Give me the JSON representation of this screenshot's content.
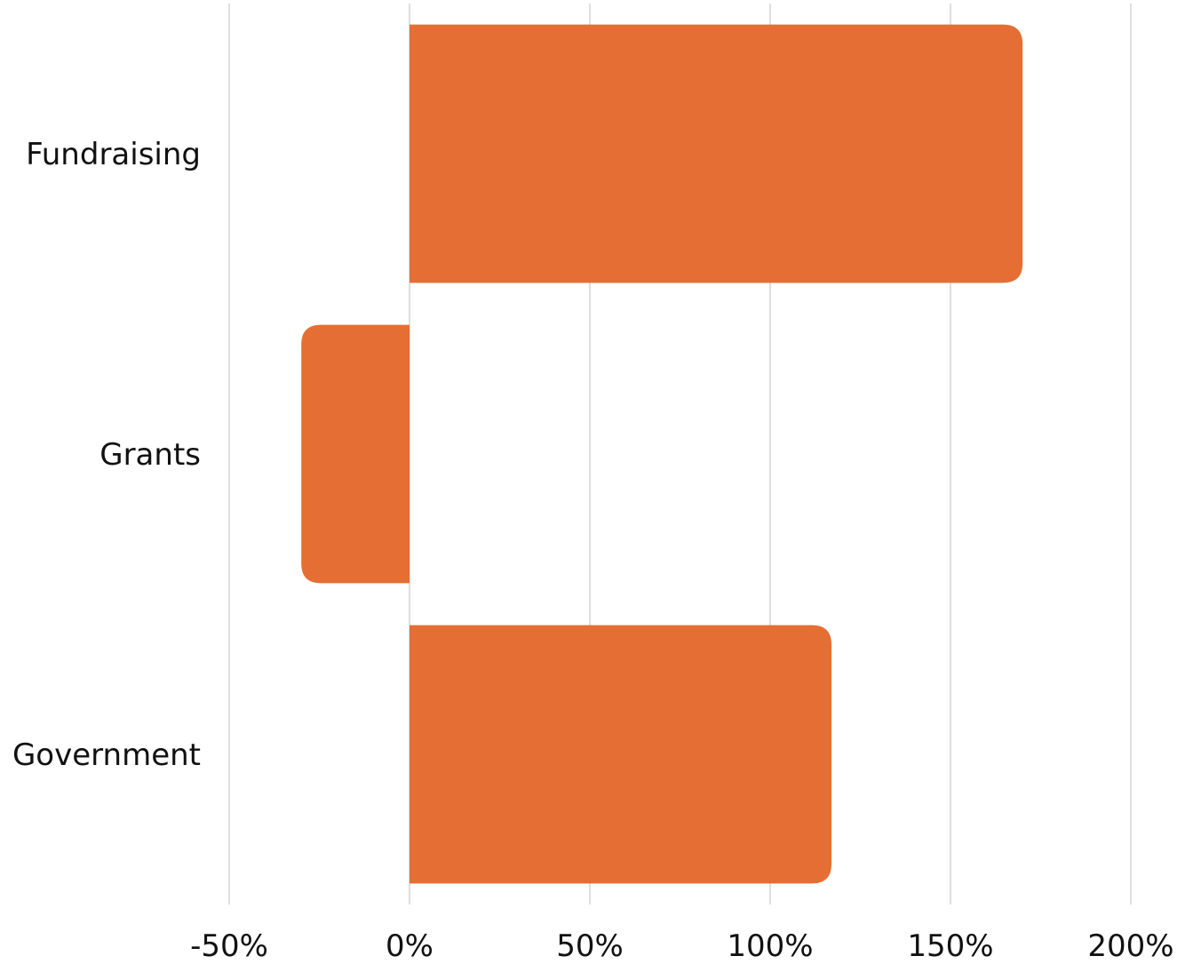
{
  "chart_data": {
    "type": "bar",
    "orientation": "horizontal",
    "categories": [
      "Fundraising",
      "Grants",
      "Government"
    ],
    "values": [
      170,
      -30,
      117
    ],
    "xlim": [
      -50,
      200
    ],
    "xticks": [
      -50,
      0,
      50,
      100,
      150,
      200
    ],
    "xtick_labels": [
      "-50%",
      "0%",
      "50%",
      "100%",
      "150%",
      "200%"
    ],
    "title": "",
    "xlabel": "",
    "ylabel": "",
    "grid": true,
    "legend": "none",
    "bar_color": "#E46E33",
    "grid_color": "#d4d4d4"
  }
}
